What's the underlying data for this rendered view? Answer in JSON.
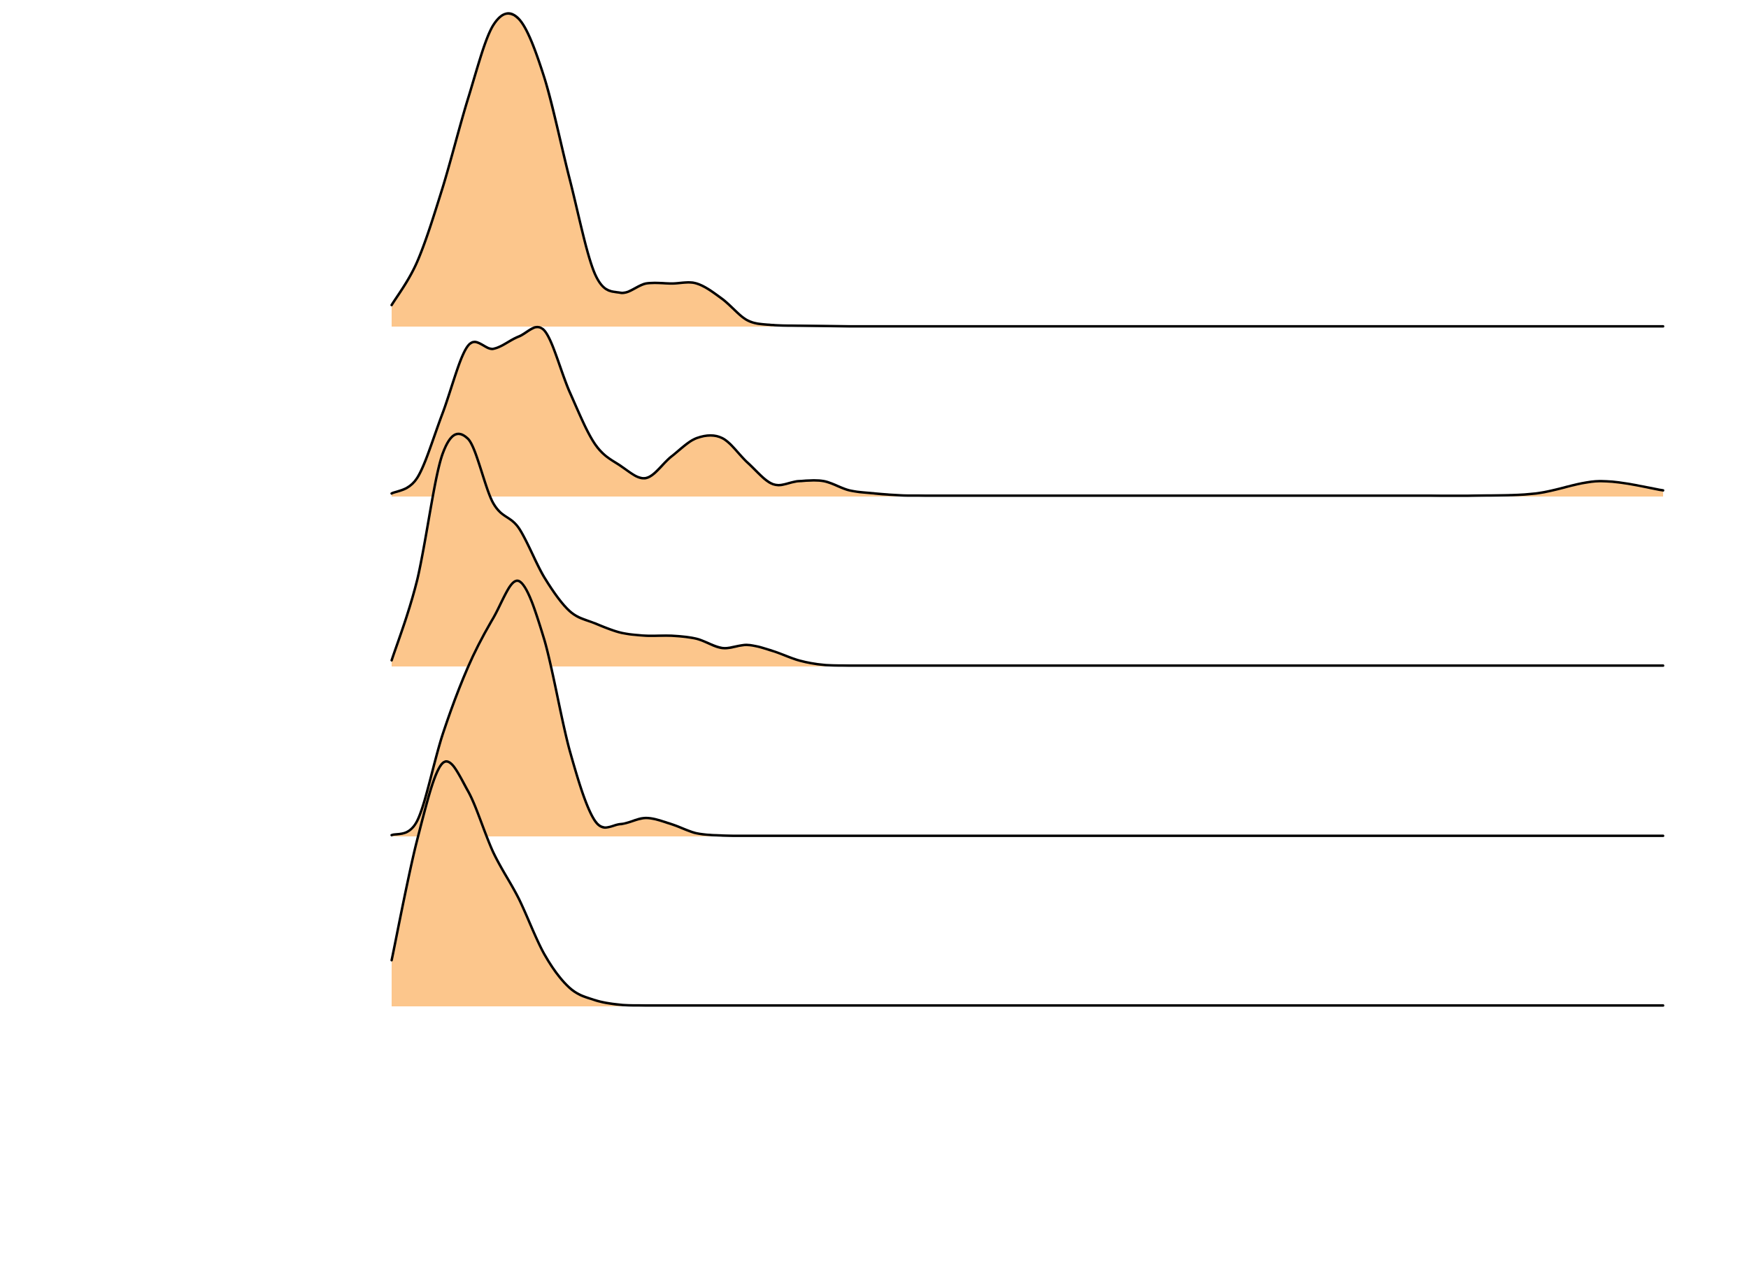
{
  "chart_data": {
    "type": "area",
    "subtype": "ridgeline",
    "title": "",
    "xlabel": "",
    "ylabel": "",
    "xlim": [
      0,
      100
    ],
    "grid": false,
    "legend": "none",
    "colors": {
      "fill": "#fcc68c",
      "line": "#000000",
      "background": "#ffffff"
    },
    "series": [
      {
        "x": [
          0,
          2,
          4,
          6,
          8,
          10,
          12,
          14,
          16,
          18,
          20,
          22,
          24,
          26,
          28,
          30,
          32,
          34,
          36,
          38,
          40,
          45,
          50,
          55,
          60,
          65,
          70,
          75,
          80,
          85,
          90,
          95,
          100
        ],
        "density": [
          0.07,
          0.21,
          0.45,
          0.74,
          0.98,
          1.0,
          0.81,
          0.48,
          0.17,
          0.11,
          0.14,
          0.14,
          0.14,
          0.09,
          0.02,
          0.005,
          0.003,
          0.002,
          0.001,
          0.001,
          0.001,
          0.001,
          0.001,
          0.001,
          0.001,
          0.001,
          0.001,
          0.001,
          0.001,
          0.001,
          0.001,
          0.001,
          0.001
        ]
      },
      {
        "x": [
          0,
          2,
          4,
          6,
          8,
          10,
          12,
          14,
          16,
          18,
          20,
          22,
          24,
          26,
          28,
          30,
          32,
          34,
          36,
          38,
          40,
          42,
          44,
          46,
          48,
          50,
          55,
          60,
          65,
          70,
          75,
          80,
          85,
          90,
          95,
          100
        ],
        "density": [
          0.01,
          0.06,
          0.27,
          0.49,
          0.48,
          0.52,
          0.54,
          0.34,
          0.17,
          0.1,
          0.06,
          0.13,
          0.19,
          0.19,
          0.11,
          0.04,
          0.05,
          0.05,
          0.02,
          0.01,
          0.004,
          0.003,
          0.003,
          0.003,
          0.003,
          0.003,
          0.003,
          0.003,
          0.003,
          0.003,
          0.003,
          0.003,
          0.003,
          0.01,
          0.05,
          0.02
        ]
      },
      {
        "x": [
          0,
          2,
          4,
          6,
          8,
          10,
          12,
          14,
          16,
          18,
          20,
          22,
          24,
          26,
          28,
          30,
          32,
          34,
          36,
          38,
          40,
          42,
          44,
          46,
          48,
          50,
          55,
          60,
          65,
          70,
          75,
          80,
          85,
          90,
          95,
          100
        ],
        "density": [
          0.02,
          0.28,
          0.69,
          0.74,
          0.53,
          0.45,
          0.29,
          0.18,
          0.14,
          0.11,
          0.1,
          0.1,
          0.09,
          0.06,
          0.07,
          0.05,
          0.02,
          0.005,
          0.003,
          0.003,
          0.003,
          0.003,
          0.003,
          0.003,
          0.003,
          0.003,
          0.003,
          0.003,
          0.003,
          0.003,
          0.003,
          0.003,
          0.003,
          0.003,
          0.003,
          0.003
        ]
      },
      {
        "x": [
          0,
          2,
          4,
          6,
          8,
          10,
          12,
          14,
          16,
          18,
          20,
          22,
          24,
          26,
          28,
          30,
          32,
          34,
          36,
          38,
          40,
          45,
          50,
          55,
          60,
          65,
          70,
          75,
          80,
          85,
          90,
          95,
          100
        ],
        "density": [
          0.004,
          0.05,
          0.33,
          0.55,
          0.71,
          0.83,
          0.64,
          0.28,
          0.05,
          0.04,
          0.06,
          0.04,
          0.01,
          0.003,
          0.002,
          0.002,
          0.002,
          0.002,
          0.002,
          0.002,
          0.002,
          0.002,
          0.002,
          0.002,
          0.002,
          0.002,
          0.002,
          0.002,
          0.002,
          0.002,
          0.002,
          0.002,
          0.002
        ]
      },
      {
        "x": [
          0,
          2,
          4,
          6,
          8,
          10,
          12,
          14,
          16,
          18,
          20,
          22,
          24,
          26,
          28,
          30,
          32,
          34,
          36,
          38,
          40,
          45,
          50,
          55,
          60,
          65,
          70,
          75,
          80,
          85,
          90,
          95,
          100
        ],
        "density": [
          0.15,
          0.54,
          0.79,
          0.7,
          0.5,
          0.35,
          0.17,
          0.06,
          0.02,
          0.005,
          0.003,
          0.003,
          0.003,
          0.003,
          0.003,
          0.003,
          0.003,
          0.003,
          0.003,
          0.003,
          0.003,
          0.003,
          0.003,
          0.003,
          0.003,
          0.003,
          0.003,
          0.003,
          0.003,
          0.003,
          0.003,
          0.003,
          0.003
        ]
      }
    ]
  }
}
